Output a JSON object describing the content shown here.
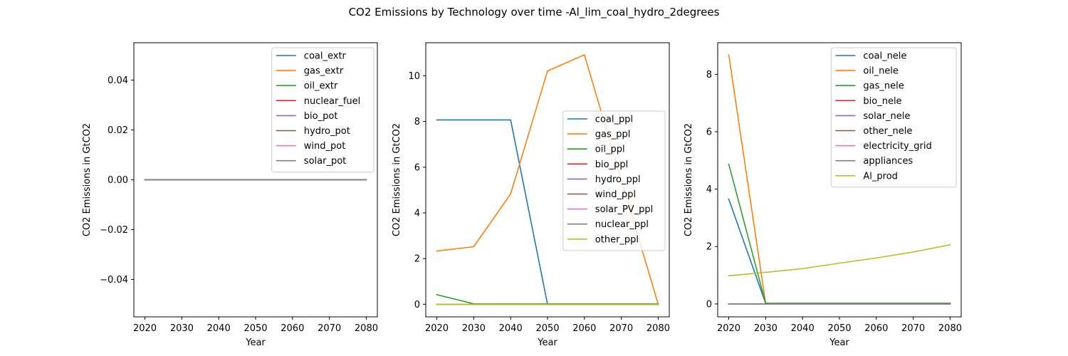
{
  "figure": {
    "title": "CO2 Emissions by Technology over time -Al_lim_coal_hydro_2degrees"
  },
  "chart_data": [
    {
      "type": "line",
      "xlabel": "Year",
      "ylabel": "CO2 Emissions in GtCO2",
      "xlim": [
        2017,
        2083
      ],
      "ylim": [
        -0.055,
        0.055
      ],
      "x_ticks": [
        2020,
        2030,
        2040,
        2050,
        2060,
        2070,
        2080
      ],
      "y_ticks": [
        -0.04,
        -0.02,
        0.0,
        0.02,
        0.04
      ],
      "y_tick_labels": [
        "−0.04",
        "−0.02",
        "0.00",
        "0.02",
        "0.04"
      ],
      "legend_position": "upper right",
      "grid": false,
      "x": [
        2020,
        2030,
        2040,
        2050,
        2060,
        2070,
        2080
      ],
      "series": [
        {
          "name": "coal_extr",
          "color": "#1f77b4",
          "values": [
            0,
            0,
            0,
            0,
            0,
            0,
            0
          ]
        },
        {
          "name": "gas_extr",
          "color": "#ff7f0e",
          "values": [
            0,
            0,
            0,
            0,
            0,
            0,
            0
          ]
        },
        {
          "name": "oil_extr",
          "color": "#2ca02c",
          "values": [
            0,
            0,
            0,
            0,
            0,
            0,
            0
          ]
        },
        {
          "name": "nuclear_fuel",
          "color": "#d62728",
          "values": [
            0,
            0,
            0,
            0,
            0,
            0,
            0
          ]
        },
        {
          "name": "bio_pot",
          "color": "#9467bd",
          "values": [
            0,
            0,
            0,
            0,
            0,
            0,
            0
          ]
        },
        {
          "name": "hydro_pot",
          "color": "#8c564b",
          "values": [
            0,
            0,
            0,
            0,
            0,
            0,
            0
          ]
        },
        {
          "name": "wind_pot",
          "color": "#e377c2",
          "values": [
            0,
            0,
            0,
            0,
            0,
            0,
            0
          ]
        },
        {
          "name": "solar_pot",
          "color": "#7f7f7f",
          "values": [
            0,
            0,
            0,
            0,
            0,
            0,
            0
          ]
        }
      ]
    },
    {
      "type": "line",
      "xlabel": "Year",
      "ylabel": "CO2 Emissions in GtCO2",
      "xlim": [
        2017,
        2083
      ],
      "ylim": [
        -0.55,
        11.45
      ],
      "x_ticks": [
        2020,
        2030,
        2040,
        2050,
        2060,
        2070,
        2080
      ],
      "y_ticks": [
        0,
        2,
        4,
        6,
        8,
        10
      ],
      "y_tick_labels": [
        "0",
        "2",
        "4",
        "6",
        "8",
        "10"
      ],
      "legend_position": "center right",
      "grid": false,
      "x": [
        2020,
        2030,
        2040,
        2050,
        2060,
        2070,
        2080
      ],
      "series": [
        {
          "name": "coal_ppl",
          "color": "#1f77b4",
          "values": [
            8.07,
            8.07,
            8.07,
            0,
            0,
            0,
            0
          ]
        },
        {
          "name": "gas_ppl",
          "color": "#ff7f0e",
          "values": [
            2.33,
            2.52,
            4.83,
            10.21,
            10.92,
            5.45,
            0
          ]
        },
        {
          "name": "oil_ppl",
          "color": "#2ca02c",
          "values": [
            0.42,
            0.02,
            0.02,
            0.02,
            0.02,
            0.02,
            0.02
          ]
        },
        {
          "name": "bio_ppl",
          "color": "#d62728",
          "values": [
            0,
            0,
            0,
            0,
            0,
            0,
            0
          ]
        },
        {
          "name": "hydro_ppl",
          "color": "#9467bd",
          "values": [
            0,
            0,
            0,
            0,
            0,
            0,
            0
          ]
        },
        {
          "name": "wind_ppl",
          "color": "#8c564b",
          "values": [
            0,
            0,
            0,
            0,
            0,
            0,
            0
          ]
        },
        {
          "name": "solar_PV_ppl",
          "color": "#e377c2",
          "values": [
            0,
            0,
            0,
            0,
            0,
            0,
            0
          ]
        },
        {
          "name": "nuclear_ppl",
          "color": "#7f7f7f",
          "values": [
            0,
            0,
            0,
            0,
            0,
            0,
            0
          ]
        },
        {
          "name": "other_ppl",
          "color": "#bcbd22",
          "values": [
            0,
            0,
            0,
            0,
            0,
            0,
            0
          ]
        }
      ]
    },
    {
      "type": "line",
      "xlabel": "Year",
      "ylabel": "CO2 Emissions in GtCO2",
      "xlim": [
        2017,
        2083
      ],
      "ylim": [
        -0.45,
        9.1
      ],
      "x_ticks": [
        2020,
        2030,
        2040,
        2050,
        2060,
        2070,
        2080
      ],
      "y_ticks": [
        0,
        2,
        4,
        6,
        8
      ],
      "y_tick_labels": [
        "0",
        "2",
        "4",
        "6",
        "8"
      ],
      "legend_position": "upper right",
      "grid": false,
      "x": [
        2020,
        2030,
        2040,
        2050,
        2060,
        2070,
        2080
      ],
      "series": [
        {
          "name": "coal_nele",
          "color": "#1f77b4",
          "values": [
            3.65,
            0.02,
            0.02,
            0.02,
            0.02,
            0.02,
            0.02
          ]
        },
        {
          "name": "oil_nele",
          "color": "#ff7f0e",
          "values": [
            8.68,
            0.02,
            0.02,
            0.02,
            0.02,
            0.02,
            0.02
          ]
        },
        {
          "name": "gas_nele",
          "color": "#2ca02c",
          "values": [
            4.87,
            0.02,
            0.02,
            0.02,
            0.02,
            0.02,
            0.02
          ]
        },
        {
          "name": "bio_nele",
          "color": "#d62728",
          "values": [
            0,
            0,
            0,
            0,
            0,
            0,
            0
          ]
        },
        {
          "name": "solar_nele",
          "color": "#9467bd",
          "values": [
            0,
            0,
            0,
            0,
            0,
            0,
            0
          ]
        },
        {
          "name": "other_nele",
          "color": "#8c564b",
          "values": [
            0,
            0,
            0,
            0,
            0,
            0,
            0
          ]
        },
        {
          "name": "electricity_grid",
          "color": "#e377c2",
          "values": [
            0,
            0,
            0,
            0,
            0,
            0,
            0
          ]
        },
        {
          "name": "appliances",
          "color": "#7f7f7f",
          "values": [
            0,
            0,
            0,
            0,
            0,
            0,
            0
          ]
        },
        {
          "name": "Al_prod",
          "color": "#bcbd22",
          "values": [
            0.98,
            1.1,
            1.23,
            1.42,
            1.6,
            1.81,
            2.06
          ]
        }
      ]
    }
  ]
}
